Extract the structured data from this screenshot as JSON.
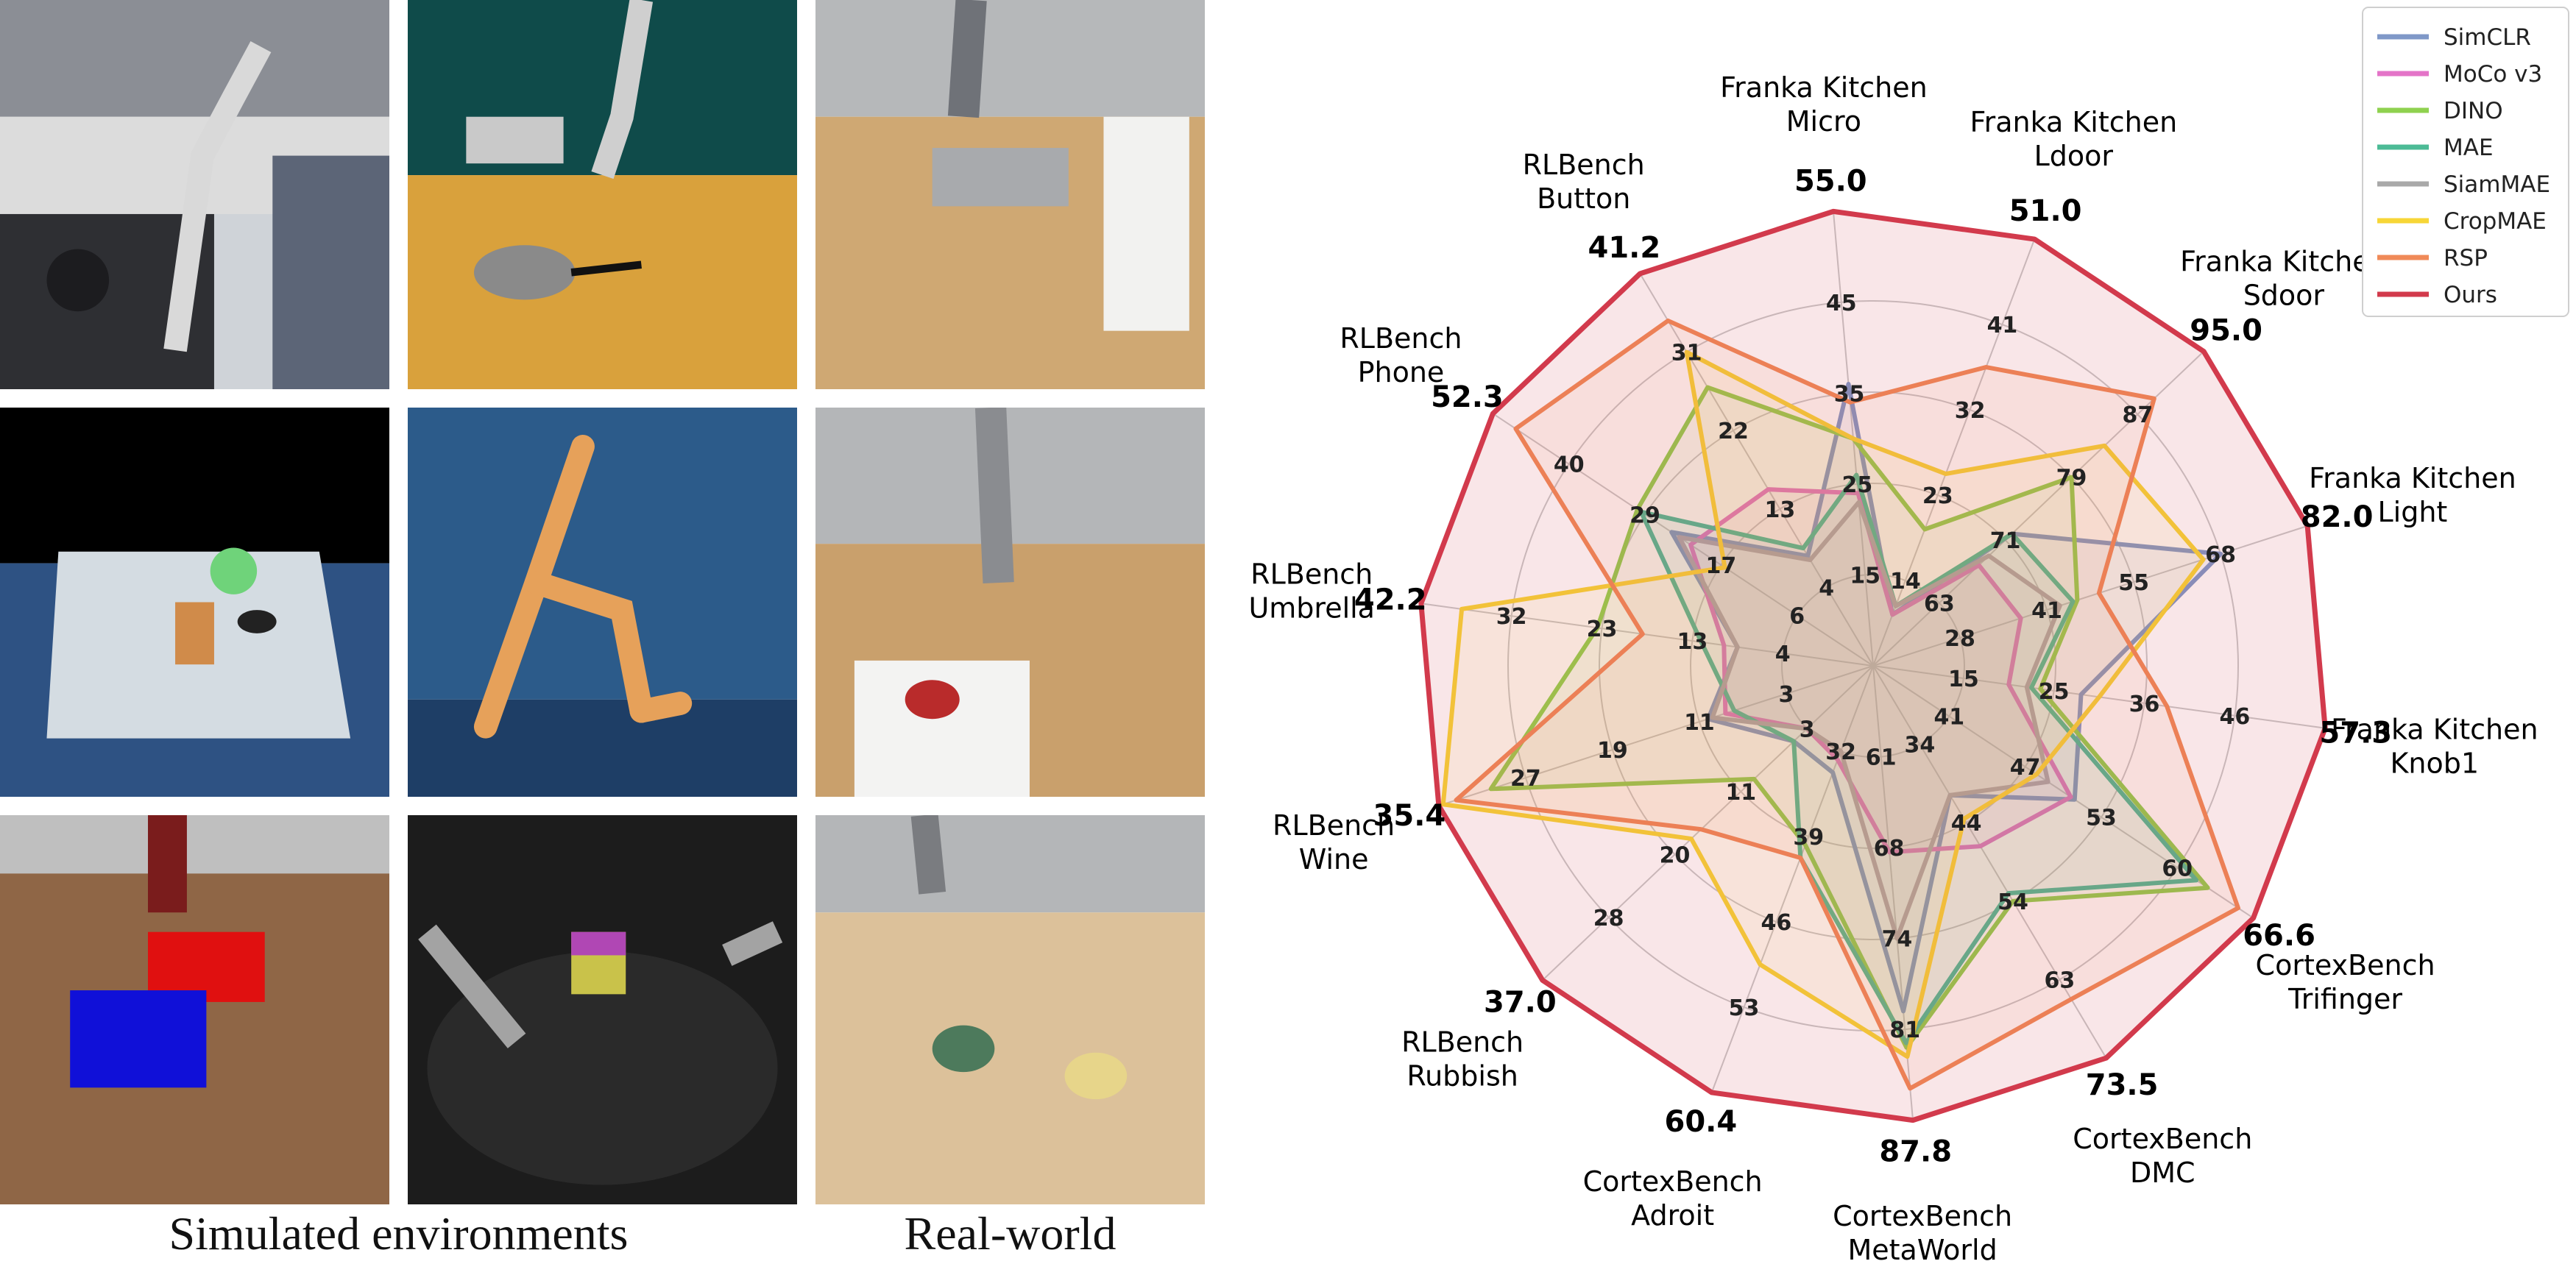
{
  "captions": {
    "simulated": "Simulated environments",
    "real": "Real-world"
  },
  "colors": {
    "SimCLR": "#7f98c8",
    "MoCo v3": "#e474c8",
    "DINO": "#8fd14f",
    "MAE": "#4cbb96",
    "SiamMAE": "#a9a9a9",
    "CropMAE": "#f7d637",
    "RSP": "#f08a58",
    "Ours": "#d23a4c"
  },
  "chart_data": {
    "type": "radar",
    "legend_placement": "top-right",
    "grid": true,
    "axes": [
      {
        "name": [
          "Franka Kitchen",
          "Micro"
        ],
        "max_label": "55.0",
        "ticks": [
          "15",
          "25",
          "35",
          "45"
        ]
      },
      {
        "name": [
          "Franka Kitchen",
          "Ldoor"
        ],
        "max_label": "51.0",
        "ticks": [
          "14",
          "23",
          "32",
          "41"
        ]
      },
      {
        "name": [
          "Franka Kitchen",
          "Sdoor"
        ],
        "max_label": "95.0",
        "ticks": [
          "63",
          "71",
          "79",
          "87"
        ]
      },
      {
        "name": [
          "Franka Kitchen",
          "Light"
        ],
        "max_label": "82.0",
        "ticks": [
          "28",
          "41",
          "55",
          "68"
        ]
      },
      {
        "name": [
          "Franka Kitchen",
          "Knob1"
        ],
        "max_label": "57.3",
        "ticks": [
          "15",
          "25",
          "36",
          "46"
        ]
      },
      {
        "name": [
          "CortexBench",
          "Trifinger"
        ],
        "max_label": "66.6",
        "ticks": [
          "41",
          "47",
          "53",
          "60"
        ]
      },
      {
        "name": [
          "CortexBench",
          "DMC"
        ],
        "max_label": "73.5",
        "ticks": [
          "34",
          "44",
          "54",
          "63"
        ]
      },
      {
        "name": [
          "CortexBench",
          "MetaWorld"
        ],
        "max_label": "87.8",
        "ticks": [
          "61",
          "68",
          "74",
          "81"
        ]
      },
      {
        "name": [
          "CortexBench",
          "Adroit"
        ],
        "max_label": "60.4",
        "ticks": [
          "32",
          "39",
          "46",
          "53"
        ]
      },
      {
        "name": [
          "RLBench",
          "Rubbish"
        ],
        "max_label": "37.0",
        "ticks": [
          "3",
          "11",
          "20",
          "28"
        ]
      },
      {
        "name": [
          "RLBench",
          "Wine"
        ],
        "max_label": "35.4",
        "ticks": [
          "3",
          "11",
          "19",
          "27"
        ]
      },
      {
        "name": [
          "RLBench",
          "Umbrella"
        ],
        "max_label": "42.2",
        "ticks": [
          "4",
          "13",
          "23",
          "32"
        ]
      },
      {
        "name": [
          "RLBench",
          "Phone"
        ],
        "max_label": "52.3",
        "ticks": [
          "6",
          "17",
          "29",
          "40"
        ]
      },
      {
        "name": [
          "RLBench",
          "Button"
        ],
        "max_label": "41.2",
        "ticks": [
          "4",
          "13",
          "22",
          "31"
        ]
      }
    ],
    "series": [
      {
        "name": "SimCLR",
        "values": [
          0.62,
          0.12,
          0.42,
          0.8,
          0.46,
          0.53,
          0.33,
          0.76,
          0.25,
          0.24,
          0.38,
          0.3,
          0.53,
          0.28
        ]
      },
      {
        "name": "MoCo v3",
        "values": [
          0.38,
          0.12,
          0.32,
          0.34,
          0.3,
          0.52,
          0.46,
          0.41,
          0.22,
          0.2,
          0.34,
          0.33,
          0.48,
          0.45
        ]
      },
      {
        "name": "DINO",
        "values": [
          0.5,
          0.32,
          0.6,
          0.47,
          0.37,
          0.88,
          0.6,
          0.84,
          0.42,
          0.36,
          0.88,
          0.61,
          0.62,
          0.71
        ]
      },
      {
        "name": "MAE",
        "values": [
          0.42,
          0.14,
          0.42,
          0.46,
          0.35,
          0.85,
          0.58,
          0.83,
          0.45,
          0.24,
          0.32,
          0.38,
          0.61,
          0.3
        ]
      },
      {
        "name": "SiamMAE",
        "values": [
          0.36,
          0.14,
          0.35,
          0.43,
          0.34,
          0.46,
          0.33,
          0.6,
          0.2,
          0.2,
          0.37,
          0.3,
          0.51,
          0.27
        ]
      },
      {
        "name": "CropMAE",
        "values": [
          0.5,
          0.45,
          0.7,
          0.76,
          0.5,
          0.43,
          0.39,
          0.86,
          0.7,
          0.55,
          0.99,
          0.91,
          0.39,
          0.8
        ]
      },
      {
        "name": "RSP",
        "values": [
          0.58,
          0.7,
          0.85,
          0.52,
          0.65,
          0.96,
          0.85,
          0.93,
          0.45,
          0.52,
          0.96,
          0.51,
          0.94,
          0.88
        ]
      },
      {
        "name": "Ours",
        "values": [
          1,
          1,
          1,
          1,
          1,
          1,
          1,
          1,
          1,
          1,
          1,
          1,
          1,
          1
        ]
      }
    ]
  }
}
